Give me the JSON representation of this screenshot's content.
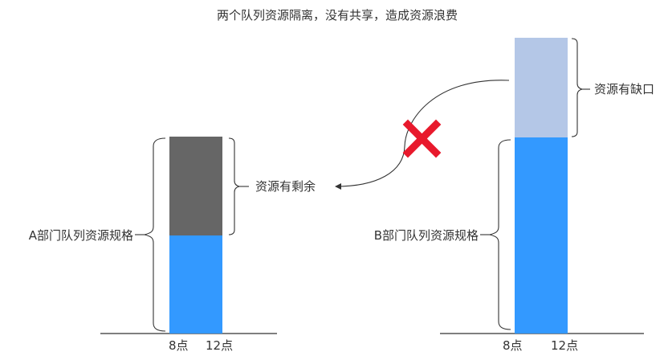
{
  "title": "两个队列资源隔离，没有共享，造成资源浪费",
  "queue_a": {
    "spec_label": "A部门队列资源规格",
    "surplus_label": "资源有剩余",
    "axis_start": "8点",
    "axis_end": "12点"
  },
  "queue_b": {
    "spec_label": "B部门队列资源规格",
    "shortage_label": "资源有缺口",
    "axis_start": "8点",
    "axis_end": "12点"
  },
  "colors": {
    "used": "#3399ff",
    "surplus": "#666666",
    "shortage": "#b4c7e7",
    "cross": "#e8192c",
    "line": "#333333"
  },
  "icons": {
    "cross": "red-x-icon"
  }
}
